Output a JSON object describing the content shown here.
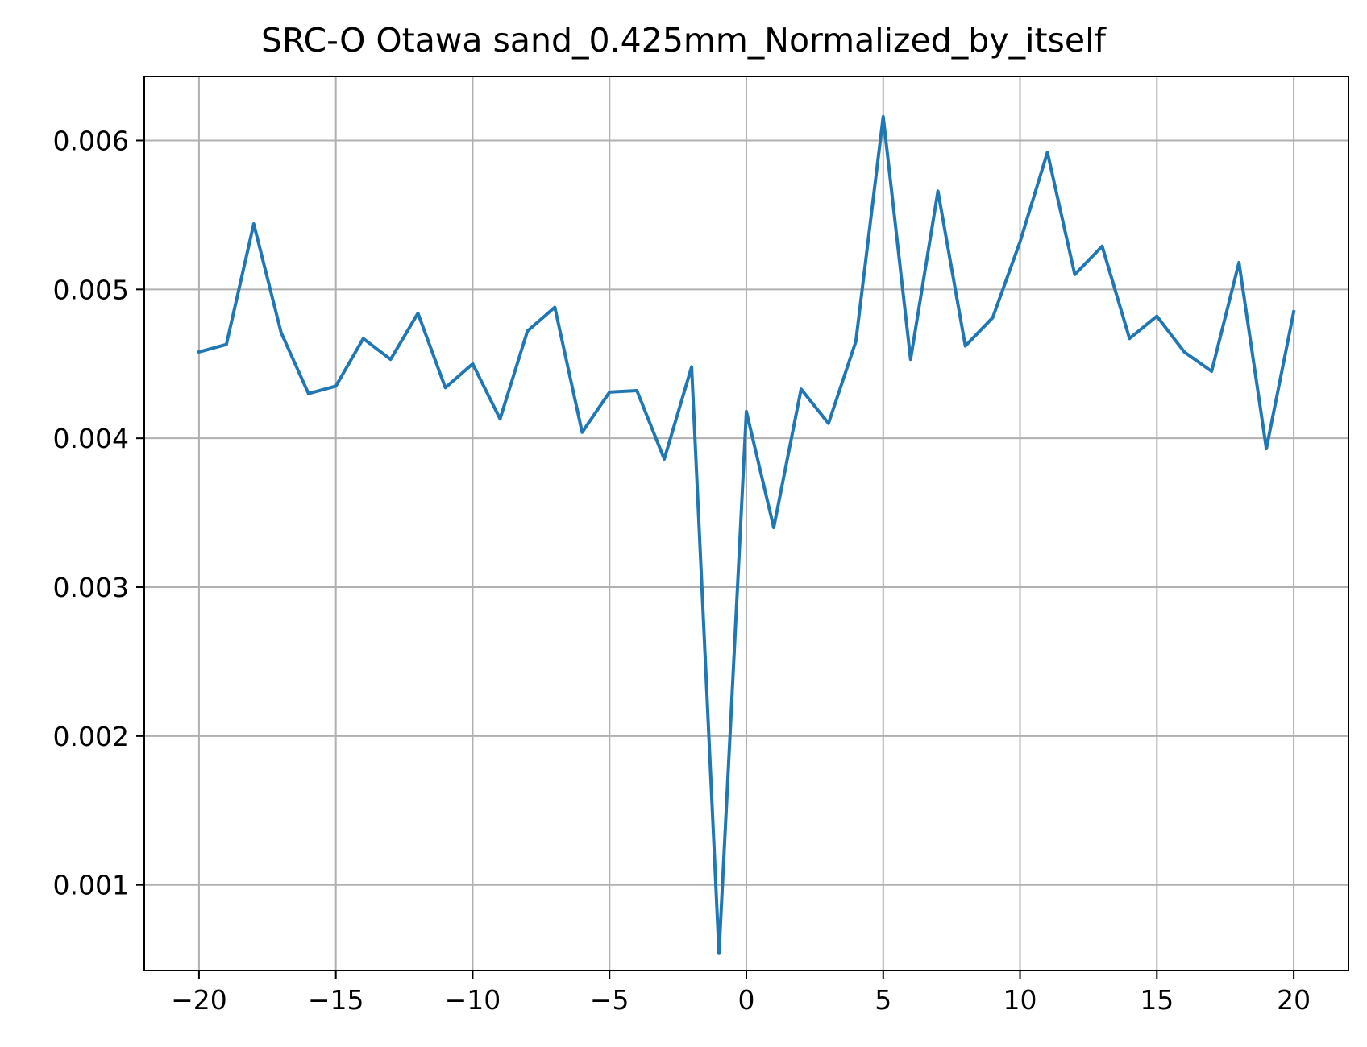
{
  "chart_data": {
    "type": "line",
    "title": "SRC-O Otawa sand_0.425mm_Normalized_by_itself",
    "xlabel": "",
    "ylabel": "",
    "xlim": [
      -22,
      22
    ],
    "ylim": [
      0.000425,
      0.00643
    ],
    "grid": true,
    "x_ticks": [
      -20,
      -15,
      -10,
      -5,
      0,
      5,
      10,
      15,
      20
    ],
    "x_tick_labels": [
      "−20",
      "−15",
      "−10",
      "−5",
      "0",
      "5",
      "10",
      "15",
      "20"
    ],
    "y_ticks": [
      0.001,
      0.002,
      0.003,
      0.004,
      0.005,
      0.006
    ],
    "y_tick_labels": [
      "0.001",
      "0.002",
      "0.003",
      "0.004",
      "0.005",
      "0.006"
    ],
    "series": [
      {
        "color": "#1f77b4",
        "x": [
          -20,
          -19,
          -18,
          -17,
          -16,
          -15,
          -14,
          -13,
          -12,
          -11,
          -10,
          -9,
          -8,
          -7,
          -6,
          -5,
          -4,
          -3,
          -2,
          -1,
          0,
          1,
          2,
          3,
          4,
          5,
          6,
          7,
          8,
          9,
          10,
          11,
          12,
          13,
          14,
          15,
          16,
          17,
          18,
          19,
          20
        ],
        "y": [
          0.00458,
          0.00463,
          0.00544,
          0.00471,
          0.0043,
          0.00435,
          0.00467,
          0.00453,
          0.00484,
          0.00434,
          0.0045,
          0.00413,
          0.00472,
          0.00488,
          0.00404,
          0.00431,
          0.00432,
          0.00386,
          0.00448,
          0.00054,
          0.00418,
          0.0034,
          0.00433,
          0.0041,
          0.00465,
          0.00616,
          0.00453,
          0.00566,
          0.00462,
          0.00481,
          0.00532,
          0.00592,
          0.0051,
          0.00529,
          0.00467,
          0.00482,
          0.00458,
          0.00445,
          0.00518,
          0.00393,
          0.00485
        ]
      }
    ]
  }
}
